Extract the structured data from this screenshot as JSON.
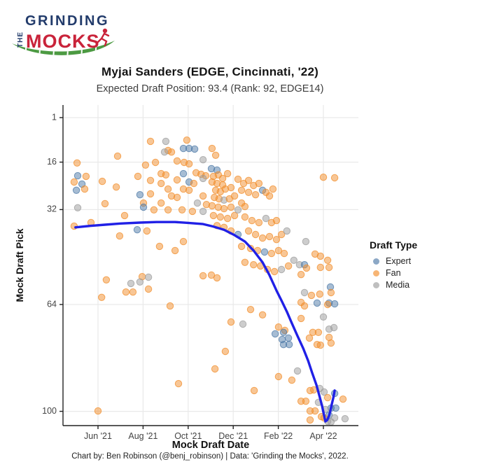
{
  "logo": {
    "grinding": "GRINDING",
    "the": "THE",
    "mocks": "MOCKS",
    "colors": {
      "navy": "#223B6B",
      "red": "#C9233A",
      "green": "#4C9A42"
    }
  },
  "header": {
    "title": "Myjai Sanders (EDGE, Cincinnati, '22)",
    "subtitle": "Expected Draft Position: 93.4 (Rank: 92, EDGE14)"
  },
  "footer": {
    "caption": "Chart by: Ben Robinson (@benj_robinson) | Data: 'Grinding the Mocks', 2022."
  },
  "legend": {
    "title": "Draft Type",
    "items": [
      {
        "label": "Expert",
        "color": "#4E79A7"
      },
      {
        "label": "Fan",
        "color": "#F28E2B"
      },
      {
        "label": "Media",
        "color": "#9C9C9C"
      }
    ]
  },
  "chart_data": {
    "type": "scatter",
    "title": "Myjai Sanders (EDGE, Cincinnati, '22)",
    "subtitle": "Expected Draft Position: 93.4 (Rank: 92, EDGE14)",
    "xlabel": "Mock Draft Date",
    "ylabel": "Mock Draft Pick",
    "x_unit": "months since 2021-05-01",
    "x_domain": [
      -0.55,
      12.55
    ],
    "y_domain": [
      1,
      105
    ],
    "y_axis_reversed": true,
    "grid": true,
    "legend_position": "right",
    "x_ticks": [
      {
        "m": 1,
        "label": "Jun '21"
      },
      {
        "m": 3,
        "label": "Aug '21"
      },
      {
        "m": 5,
        "label": "Oct '21"
      },
      {
        "m": 7,
        "label": "Dec '21"
      },
      {
        "m": 9,
        "label": "Feb '22"
      },
      {
        "m": 11,
        "label": "Apr '22"
      }
    ],
    "y_ticks": [
      1,
      16,
      32,
      64,
      100
    ],
    "colors": {
      "e": "#4E79A7",
      "f": "#F28E2B",
      "m": "#9C9C9C"
    },
    "series_key": {
      "e": "Expert",
      "f": "Fan",
      "m": "Media"
    },
    "trend": {
      "name": "expected-draft-position-trend",
      "color": "#2020E6",
      "points": [
        [
          0.0,
          38.0
        ],
        [
          0.65,
          37.5
        ],
        [
          1.31,
          37.1
        ],
        [
          2.0,
          36.7
        ],
        [
          2.86,
          36.4
        ],
        [
          3.6,
          36.2
        ],
        [
          4.42,
          36.2
        ],
        [
          5.0,
          36.5
        ],
        [
          5.66,
          36.9
        ],
        [
          6.1,
          37.7
        ],
        [
          6.59,
          38.8
        ],
        [
          7.05,
          40.6
        ],
        [
          7.52,
          42.8
        ],
        [
          7.9,
          45.8
        ],
        [
          8.3,
          49.8
        ],
        [
          8.6,
          54.0
        ],
        [
          8.92,
          59.3
        ],
        [
          9.15,
          62.8
        ],
        [
          9.38,
          66.4
        ],
        [
          9.6,
          70.3
        ],
        [
          9.85,
          74.6
        ],
        [
          10.1,
          78.7
        ],
        [
          10.32,
          82.9
        ],
        [
          10.5,
          87.0
        ],
        [
          10.69,
          91.1
        ],
        [
          10.82,
          94.7
        ],
        [
          10.94,
          98.2
        ],
        [
          11.02,
          101.0
        ],
        [
          11.09,
          103.4
        ],
        [
          11.17,
          102.9
        ],
        [
          11.25,
          101.5
        ],
        [
          11.31,
          99.8
        ],
        [
          11.37,
          97.7
        ],
        [
          11.44,
          95.4
        ],
        [
          11.5,
          93.0
        ]
      ]
    },
    "points": [
      [
        0.07,
        16.3,
        "f"
      ],
      [
        0.1,
        20.6,
        "e"
      ],
      [
        0.47,
        20.8,
        "f"
      ],
      [
        -0.06,
        22.7,
        "f"
      ],
      [
        0.29,
        23.4,
        "e"
      ],
      [
        0.04,
        25.5,
        "e"
      ],
      [
        0.41,
        25.1,
        "f"
      ],
      [
        0.1,
        31.4,
        "m"
      ],
      [
        0.69,
        36.4,
        "f"
      ],
      [
        -0.06,
        37.6,
        "f"
      ],
      [
        1.0,
        99.9,
        "f"
      ],
      [
        1.19,
        22.5,
        "f"
      ],
      [
        1.81,
        24.4,
        "f"
      ],
      [
        1.87,
        14.0,
        "f"
      ],
      [
        1.37,
        55.7,
        "f"
      ],
      [
        1.16,
        61.6,
        "f"
      ],
      [
        1.96,
        40.9,
        "f"
      ],
      [
        2.18,
        34.0,
        "f"
      ],
      [
        1.31,
        30.0,
        "f"
      ],
      [
        2.74,
        38.8,
        "e"
      ],
      [
        3.33,
        9.0,
        "f"
      ],
      [
        2.77,
        20.8,
        "f"
      ],
      [
        2.86,
        27.0,
        "e"
      ],
      [
        3.02,
        29.8,
        "f"
      ],
      [
        3.11,
        17.0,
        "f"
      ],
      [
        3.33,
        22.2,
        "f"
      ],
      [
        3.48,
        32.1,
        "f"
      ],
      [
        3.55,
        16.1,
        "f"
      ],
      [
        3.33,
        26.7,
        "f"
      ],
      [
        2.96,
        54.6,
        "f"
      ],
      [
        3.24,
        58.8,
        "f"
      ],
      [
        2.46,
        56.9,
        "m"
      ],
      [
        2.86,
        56.4,
        "m"
      ],
      [
        3.24,
        54.8,
        "m"
      ],
      [
        2.55,
        59.8,
        "f"
      ],
      [
        2.24,
        59.8,
        "f"
      ],
      [
        3.02,
        31.2,
        "e"
      ],
      [
        3.17,
        39.2,
        "f"
      ],
      [
        4.01,
        9.0,
        "m"
      ],
      [
        4.11,
        12.1,
        "f"
      ],
      [
        4.26,
        12.6,
        "f"
      ],
      [
        3.95,
        12.6,
        "m"
      ],
      [
        3.8,
        19.9,
        "f"
      ],
      [
        4.01,
        20.3,
        "f"
      ],
      [
        3.8,
        23.2,
        "f"
      ],
      [
        4.11,
        25.1,
        "f"
      ],
      [
        4.26,
        27.4,
        "f"
      ],
      [
        4.51,
        27.9,
        "f"
      ],
      [
        3.8,
        29.8,
        "f"
      ],
      [
        4.11,
        32.1,
        "f"
      ],
      [
        4.51,
        15.6,
        "f"
      ],
      [
        4.51,
        22.0,
        "f"
      ],
      [
        4.2,
        64.5,
        "f"
      ],
      [
        4.57,
        90.7,
        "f"
      ],
      [
        4.42,
        45.8,
        "f"
      ],
      [
        4.79,
        42.8,
        "f"
      ],
      [
        3.73,
        44.4,
        "f"
      ],
      [
        4.94,
        8.6,
        "f"
      ],
      [
        4.79,
        11.4,
        "e"
      ],
      [
        5.04,
        11.4,
        "e"
      ],
      [
        5.29,
        11.6,
        "e"
      ],
      [
        4.82,
        16.1,
        "f"
      ],
      [
        5.04,
        16.6,
        "f"
      ],
      [
        5.35,
        19.6,
        "f"
      ],
      [
        5.57,
        20.1,
        "f"
      ],
      [
        5.78,
        20.6,
        "f"
      ],
      [
        4.79,
        19.9,
        "e"
      ],
      [
        5.04,
        22.7,
        "e"
      ],
      [
        5.25,
        23.2,
        "f"
      ],
      [
        4.79,
        25.1,
        "f"
      ],
      [
        5.04,
        25.5,
        "f"
      ],
      [
        5.66,
        15.2,
        "m"
      ],
      [
        5.41,
        29.8,
        "m"
      ],
      [
        5.66,
        27.4,
        "f"
      ],
      [
        5.81,
        30.3,
        "f"
      ],
      [
        5.66,
        32.6,
        "m"
      ],
      [
        5.19,
        32.6,
        "f"
      ],
      [
        4.73,
        32.1,
        "f"
      ],
      [
        5.66,
        21.5,
        "m"
      ],
      [
        6.06,
        11.4,
        "f"
      ],
      [
        6.22,
        13.7,
        "f"
      ],
      [
        6.03,
        18.2,
        "e"
      ],
      [
        6.28,
        18.7,
        "e"
      ],
      [
        6.12,
        20.8,
        "f"
      ],
      [
        6.34,
        20.3,
        "f"
      ],
      [
        6.53,
        21.5,
        "f"
      ],
      [
        6.75,
        19.9,
        "f"
      ],
      [
        6.06,
        22.7,
        "f"
      ],
      [
        6.28,
        23.2,
        "f"
      ],
      [
        6.53,
        23.7,
        "f"
      ],
      [
        6.22,
        25.5,
        "f"
      ],
      [
        6.43,
        26.0,
        "f"
      ],
      [
        6.65,
        25.1,
        "f"
      ],
      [
        6.9,
        24.6,
        "f"
      ],
      [
        6.16,
        27.9,
        "f"
      ],
      [
        6.37,
        28.4,
        "f"
      ],
      [
        6.59,
        28.8,
        "m"
      ],
      [
        6.83,
        28.4,
        "f"
      ],
      [
        7.06,
        27.4,
        "f"
      ],
      [
        6.06,
        30.7,
        "f"
      ],
      [
        6.34,
        31.2,
        "f"
      ],
      [
        6.59,
        31.7,
        "f"
      ],
      [
        6.9,
        31.2,
        "f"
      ],
      [
        6.12,
        34.0,
        "f"
      ],
      [
        6.43,
        34.5,
        "f"
      ],
      [
        6.75,
        35.0,
        "f"
      ],
      [
        7.06,
        34.0,
        "f"
      ],
      [
        7.21,
        32.1,
        "m"
      ],
      [
        7.37,
        29.8,
        "f"
      ],
      [
        7.52,
        31.0,
        "f"
      ],
      [
        6.28,
        37.4,
        "f"
      ],
      [
        6.59,
        38.0,
        "f"
      ],
      [
        6.9,
        39.2,
        "f"
      ],
      [
        7.21,
        40.4,
        "e"
      ],
      [
        6.28,
        55.0,
        "f"
      ],
      [
        6.03,
        54.1,
        "f"
      ],
      [
        5.66,
        54.3,
        "f"
      ],
      [
        6.65,
        79.8,
        "f"
      ],
      [
        6.19,
        85.7,
        "f"
      ],
      [
        6.9,
        69.9,
        "f"
      ],
      [
        7.21,
        21.8,
        "f"
      ],
      [
        7.46,
        23.2,
        "f"
      ],
      [
        7.68,
        22.2,
        "f"
      ],
      [
        7.9,
        23.9,
        "f"
      ],
      [
        8.14,
        23.2,
        "f"
      ],
      [
        7.37,
        25.5,
        "f"
      ],
      [
        7.68,
        26.2,
        "f"
      ],
      [
        7.99,
        27.0,
        "f"
      ],
      [
        8.3,
        25.5,
        "e"
      ],
      [
        8.45,
        26.2,
        "f"
      ],
      [
        8.61,
        27.4,
        "f"
      ],
      [
        8.76,
        25.1,
        "f"
      ],
      [
        7.52,
        34.5,
        "f"
      ],
      [
        7.83,
        35.7,
        "f"
      ],
      [
        8.14,
        36.4,
        "f"
      ],
      [
        8.45,
        35.0,
        "m"
      ],
      [
        8.7,
        36.4,
        "f"
      ],
      [
        8.92,
        35.7,
        "f"
      ],
      [
        7.68,
        39.2,
        "f"
      ],
      [
        7.99,
        40.4,
        "f"
      ],
      [
        8.3,
        41.6,
        "f"
      ],
      [
        8.61,
        41.1,
        "f"
      ],
      [
        8.92,
        42.1,
        "f"
      ],
      [
        9.14,
        40.4,
        "f"
      ],
      [
        9.38,
        39.2,
        "m"
      ],
      [
        7.37,
        44.4,
        "f"
      ],
      [
        7.77,
        45.1,
        "f"
      ],
      [
        8.08,
        45.8,
        "f"
      ],
      [
        8.39,
        46.3,
        "e"
      ],
      [
        8.7,
        46.8,
        "f"
      ],
      [
        9.01,
        45.8,
        "f"
      ],
      [
        9.26,
        46.8,
        "f"
      ],
      [
        7.52,
        49.8,
        "f"
      ],
      [
        7.9,
        50.6,
        "f"
      ],
      [
        8.21,
        51.0,
        "f"
      ],
      [
        8.52,
        52.2,
        "f"
      ],
      [
        8.83,
        52.9,
        "f"
      ],
      [
        9.14,
        52.2,
        "m"
      ],
      [
        9.45,
        51.0,
        "f"
      ],
      [
        9.69,
        49.1,
        "m"
      ],
      [
        9.94,
        50.6,
        "m"
      ],
      [
        7.77,
        65.7,
        "f"
      ],
      [
        7.93,
        93.0,
        "f"
      ],
      [
        8.3,
        67.5,
        "f"
      ],
      [
        7.43,
        70.6,
        "m"
      ],
      [
        10.22,
        42.8,
        "m"
      ],
      [
        10.63,
        47.0,
        "f"
      ],
      [
        10.87,
        47.7,
        "f"
      ],
      [
        11.19,
        49.1,
        "f"
      ],
      [
        10.16,
        50.6,
        "e"
      ],
      [
        10.25,
        51.7,
        "f"
      ],
      [
        10.87,
        51.5,
        "f"
      ],
      [
        11.25,
        51.5,
        "f"
      ],
      [
        10.01,
        53.9,
        "f"
      ],
      [
        11.31,
        58.1,
        "e"
      ],
      [
        10.16,
        60.0,
        "m"
      ],
      [
        10.47,
        60.9,
        "f"
      ],
      [
        10.84,
        60.5,
        "f"
      ],
      [
        11.34,
        60.0,
        "f"
      ],
      [
        10.01,
        63.3,
        "f"
      ],
      [
        10.72,
        63.5,
        "e"
      ],
      [
        11.25,
        63.5,
        "e"
      ],
      [
        11.5,
        63.8,
        "e"
      ],
      [
        10.16,
        64.5,
        "f"
      ],
      [
        11.19,
        64.0,
        "f"
      ],
      [
        10.01,
        68.7,
        "f"
      ],
      [
        11.0,
        68.2,
        "m"
      ],
      [
        11.47,
        71.8,
        "m"
      ],
      [
        10.53,
        73.4,
        "f"
      ],
      [
        10.78,
        73.4,
        "f"
      ],
      [
        11.25,
        72.3,
        "m"
      ],
      [
        10.38,
        75.3,
        "f"
      ],
      [
        11.25,
        75.1,
        "f"
      ],
      [
        10.72,
        77.5,
        "f"
      ],
      [
        10.87,
        77.7,
        "f"
      ],
      [
        11.34,
        77.0,
        "f"
      ],
      [
        9.01,
        71.6,
        "f"
      ],
      [
        9.29,
        72.7,
        "f"
      ],
      [
        8.86,
        73.9,
        "e"
      ],
      [
        9.23,
        73.4,
        "e"
      ],
      [
        9.17,
        75.8,
        "e"
      ],
      [
        9.45,
        75.3,
        "e"
      ],
      [
        9.23,
        77.5,
        "e"
      ],
      [
        9.48,
        77.5,
        "e"
      ],
      [
        9.01,
        88.3,
        "f"
      ],
      [
        9.6,
        89.5,
        "f"
      ],
      [
        9.85,
        86.4,
        "m"
      ],
      [
        10.41,
        93.0,
        "f"
      ],
      [
        10.57,
        92.8,
        "f"
      ],
      [
        10.84,
        92.3,
        "m"
      ],
      [
        11.03,
        93.5,
        "m"
      ],
      [
        11.5,
        94.0,
        "e"
      ],
      [
        11.19,
        95.4,
        "f"
      ],
      [
        10.01,
        96.6,
        "f"
      ],
      [
        10.22,
        96.6,
        "f"
      ],
      [
        10.78,
        97.0,
        "m"
      ],
      [
        11.34,
        98.9,
        "e"
      ],
      [
        11.55,
        98.9,
        "e"
      ],
      [
        11.09,
        99.4,
        "m"
      ],
      [
        10.41,
        99.9,
        "f"
      ],
      [
        10.63,
        99.9,
        "f"
      ],
      [
        11.25,
        101.3,
        "e"
      ],
      [
        10.91,
        101.8,
        "f"
      ],
      [
        11.03,
        102.2,
        "f"
      ],
      [
        11.5,
        102.2,
        "m"
      ],
      [
        11.19,
        103.4,
        "m"
      ],
      [
        11.34,
        103.6,
        "m"
      ],
      [
        10.41,
        102.9,
        "f"
      ],
      [
        11.87,
        95.9,
        "f"
      ],
      [
        11.96,
        102.5,
        "m"
      ],
      [
        11.0,
        21.1,
        "f"
      ],
      [
        11.5,
        21.3,
        "f"
      ]
    ]
  }
}
